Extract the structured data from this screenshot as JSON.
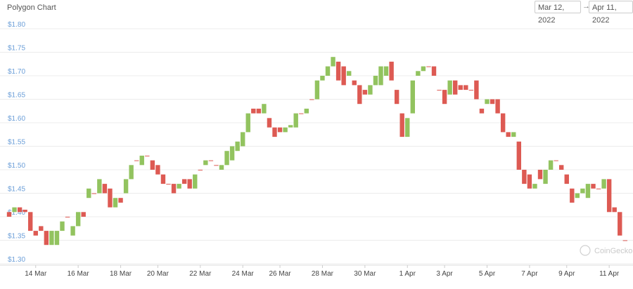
{
  "chart_data": {
    "type": "candlestick",
    "title": "Polygon Chart",
    "range_start": "Mar 12, 2022",
    "range_arrow": "→",
    "range_end": "Apr 11, 2022",
    "watermark": "CoinGecko",
    "up_color": "#92c35f",
    "down_color": "#dd5a53",
    "grid": true,
    "ylim": [
      1.3,
      1.8
    ],
    "yticks": [
      {
        "value": 1.3,
        "label": "$1.30"
      },
      {
        "value": 1.35,
        "label": "$1.35"
      },
      {
        "value": 1.4,
        "label": "$1.40"
      },
      {
        "value": 1.45,
        "label": "$1.45"
      },
      {
        "value": 1.5,
        "label": "$1.50"
      },
      {
        "value": 1.55,
        "label": "$1.55"
      },
      {
        "value": 1.6,
        "label": "$1.60"
      },
      {
        "value": 1.65,
        "label": "$1.65"
      },
      {
        "value": 1.7,
        "label": "$1.70"
      },
      {
        "value": 1.75,
        "label": "$1.75"
      },
      {
        "value": 1.8,
        "label": "$1.80"
      }
    ],
    "categories": [
      null,
      null,
      null,
      null,
      null,
      "14 Mar",
      null,
      null,
      null,
      null,
      null,
      null,
      null,
      "16 Mar",
      null,
      null,
      null,
      null,
      null,
      null,
      null,
      "18 Mar",
      null,
      null,
      null,
      null,
      null,
      null,
      "20 Mar",
      null,
      null,
      null,
      null,
      null,
      null,
      null,
      "22 Mar",
      null,
      null,
      null,
      null,
      null,
      null,
      null,
      "24 Mar",
      null,
      null,
      null,
      null,
      null,
      null,
      "26 Mar",
      null,
      null,
      null,
      null,
      null,
      null,
      null,
      "28 Mar",
      null,
      null,
      null,
      null,
      null,
      null,
      null,
      "30 Mar",
      null,
      null,
      null,
      null,
      null,
      null,
      null,
      "1 Apr",
      null,
      null,
      null,
      null,
      null,
      null,
      "3 Apr",
      null,
      null,
      null,
      null,
      null,
      null,
      null,
      "5 Apr",
      null,
      null,
      null,
      null,
      null,
      null,
      null,
      "7 Apr",
      null,
      null,
      null,
      null,
      null,
      null,
      "9 Apr",
      null,
      null,
      null,
      null,
      null,
      null,
      null,
      "11 Apr",
      null,
      null,
      null
    ],
    "open": [
      1.41,
      1.41,
      1.42,
      1.415,
      1.41,
      1.37,
      1.38,
      1.37,
      1.34,
      1.34,
      1.37,
      1.4,
      1.36,
      1.38,
      1.41,
      1.44,
      1.45,
      1.45,
      1.47,
      1.46,
      1.42,
      1.44,
      1.45,
      1.48,
      1.52,
      1.51,
      1.53,
      1.52,
      1.51,
      1.49,
      1.47,
      1.47,
      1.46,
      1.48,
      1.48,
      1.46,
      1.5,
      1.51,
      1.52,
      1.51,
      1.5,
      1.51,
      1.52,
      1.54,
      1.55,
      1.58,
      1.63,
      1.63,
      1.62,
      1.61,
      1.59,
      1.59,
      1.58,
      1.59,
      1.59,
      1.62,
      1.62,
      1.65,
      1.65,
      1.69,
      1.7,
      1.72,
      1.73,
      1.72,
      1.7,
      1.69,
      1.68,
      1.67,
      1.66,
      1.68,
      1.68,
      1.7,
      1.73,
      1.67,
      1.62,
      1.57,
      1.62,
      1.7,
      1.71,
      1.72,
      1.72,
      1.67,
      1.67,
      1.66,
      1.69,
      1.68,
      1.68,
      1.67,
      1.69,
      1.63,
      1.64,
      1.65,
      1.65,
      1.62,
      1.58,
      1.57,
      1.56,
      1.5,
      1.49,
      1.46,
      1.5,
      1.47,
      1.5,
      1.52,
      1.51,
      1.49,
      1.46,
      1.44,
      1.45,
      1.44,
      1.47,
      1.46,
      1.46,
      1.48,
      1.42,
      1.41,
      1.35
    ],
    "close": [
      1.4,
      1.42,
      1.41,
      1.41,
      1.37,
      1.36,
      1.37,
      1.34,
      1.37,
      1.37,
      1.39,
      1.4,
      1.38,
      1.41,
      1.4,
      1.46,
      1.45,
      1.48,
      1.45,
      1.42,
      1.44,
      1.43,
      1.48,
      1.51,
      1.52,
      1.53,
      1.53,
      1.5,
      1.49,
      1.47,
      1.47,
      1.45,
      1.47,
      1.47,
      1.46,
      1.49,
      1.5,
      1.52,
      1.52,
      1.51,
      1.51,
      1.54,
      1.55,
      1.56,
      1.58,
      1.62,
      1.62,
      1.62,
      1.64,
      1.59,
      1.57,
      1.58,
      1.59,
      1.595,
      1.62,
      1.62,
      1.63,
      1.65,
      1.69,
      1.7,
      1.72,
      1.74,
      1.69,
      1.68,
      1.71,
      1.68,
      1.64,
      1.66,
      1.68,
      1.7,
      1.72,
      1.72,
      1.69,
      1.64,
      1.57,
      1.61,
      1.69,
      1.71,
      1.72,
      1.72,
      1.7,
      1.67,
      1.64,
      1.69,
      1.66,
      1.67,
      1.67,
      1.67,
      1.65,
      1.62,
      1.65,
      1.64,
      1.62,
      1.58,
      1.57,
      1.58,
      1.5,
      1.47,
      1.46,
      1.47,
      1.48,
      1.5,
      1.52,
      1.52,
      1.5,
      1.47,
      1.43,
      1.45,
      1.46,
      1.47,
      1.46,
      1.46,
      1.48,
      1.41,
      1.41,
      1.36,
      1.35
    ]
  }
}
